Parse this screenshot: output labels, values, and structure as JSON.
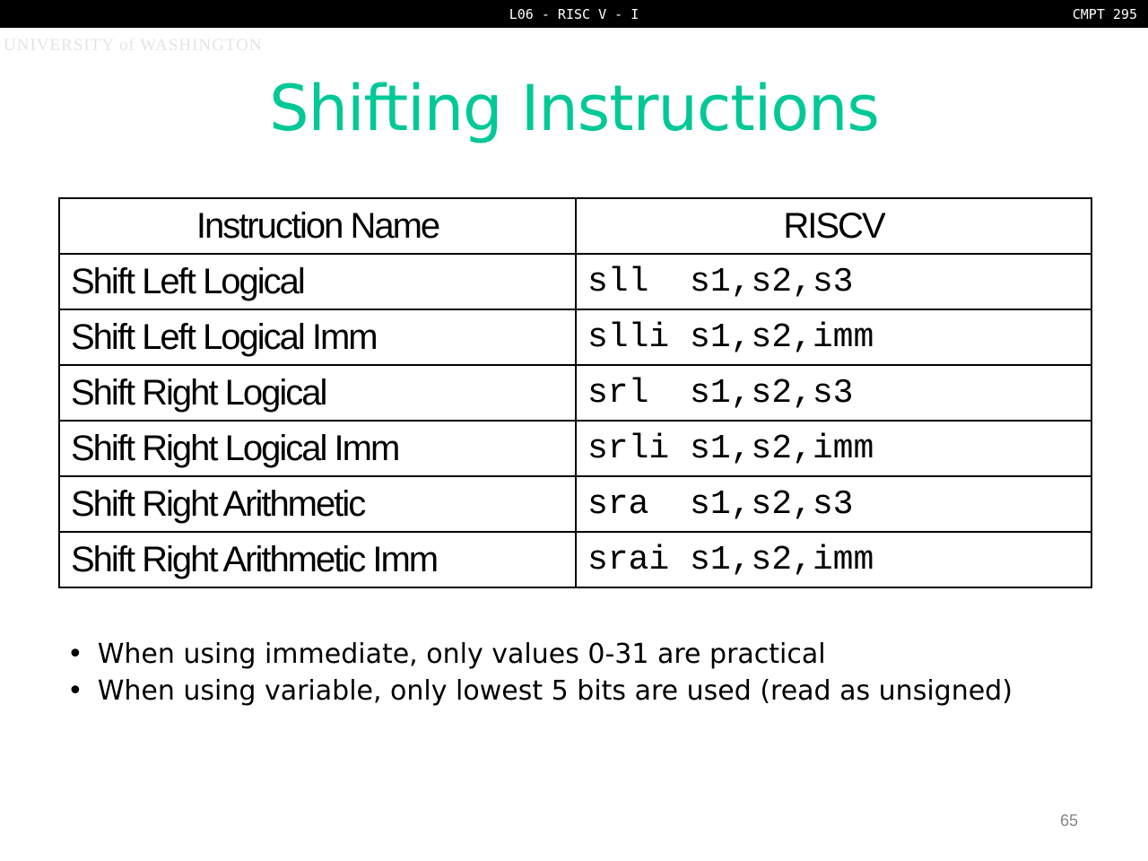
{
  "header": {
    "lecture": "L06 - RISC V - I",
    "course": "CMPT 295"
  },
  "logo": "UNIVERSITY of WASHINGTON",
  "title": "Shifting Instructions",
  "table": {
    "headers": [
      "Instruction Name",
      "RISCV"
    ],
    "rows": [
      [
        "Shift Left Logical",
        "sll  s1,s2,s3"
      ],
      [
        "Shift Left Logical Imm",
        "slli s1,s2,imm"
      ],
      [
        "Shift Right Logical",
        "srl  s1,s2,s3"
      ],
      [
        "Shift Right Logical Imm",
        "srli s1,s2,imm"
      ],
      [
        "Shift Right Arithmetic",
        "sra  s1,s2,s3"
      ],
      [
        "Shift Right Arithmetic Imm",
        "srai s1,s2,imm"
      ]
    ]
  },
  "bullets": [
    "When using immediate, only values 0-31 are practical",
    "When using variable, only lowest 5 bits are used (read as unsigned)"
  ],
  "page_number": "65"
}
